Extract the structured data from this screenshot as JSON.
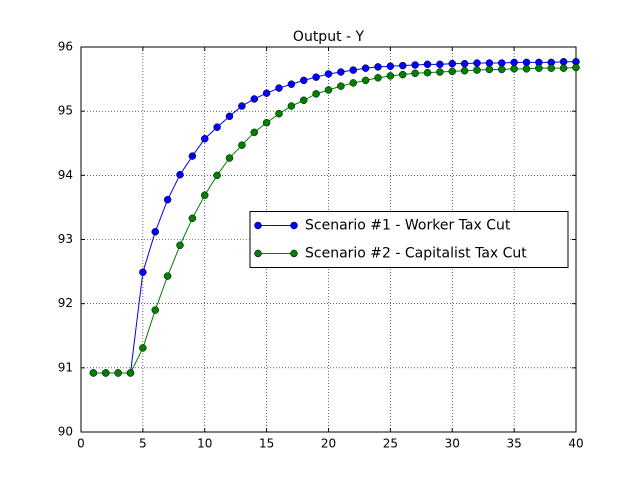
{
  "chart_data": {
    "type": "line",
    "title": "Output - Y",
    "x": [
      1,
      2,
      3,
      4,
      5,
      6,
      7,
      8,
      9,
      10,
      11,
      12,
      13,
      14,
      15,
      16,
      17,
      18,
      19,
      20,
      21,
      22,
      23,
      24,
      25,
      26,
      27,
      28,
      29,
      30,
      31,
      32,
      33,
      34,
      35,
      36,
      37,
      38,
      39,
      40
    ],
    "series": [
      {
        "name": "Scenario #1 - Worker Tax Cut",
        "color": "#0000ff",
        "values": [
          90.92,
          90.92,
          90.92,
          90.92,
          92.49,
          93.12,
          93.62,
          94.01,
          94.3,
          94.57,
          94.75,
          94.92,
          95.08,
          95.19,
          95.28,
          95.36,
          95.42,
          95.48,
          95.53,
          95.58,
          95.61,
          95.64,
          95.67,
          95.69,
          95.7,
          95.71,
          95.72,
          95.73,
          95.73,
          95.74,
          95.74,
          95.75,
          95.75,
          95.75,
          95.76,
          95.76,
          95.76,
          95.76,
          95.77,
          95.77
        ]
      },
      {
        "name": "Scenario #2 - Capitalist Tax Cut",
        "color": "#008000",
        "values": [
          90.92,
          90.92,
          90.92,
          90.92,
          91.31,
          91.9,
          92.43,
          92.91,
          93.33,
          93.69,
          94.0,
          94.27,
          94.47,
          94.67,
          94.82,
          94.96,
          95.08,
          95.17,
          95.27,
          95.33,
          95.39,
          95.44,
          95.48,
          95.52,
          95.55,
          95.57,
          95.59,
          95.6,
          95.61,
          95.62,
          95.63,
          95.64,
          95.65,
          95.65,
          95.66,
          95.66,
          95.67,
          95.67,
          95.67,
          95.68
        ]
      }
    ],
    "xlim": [
      0,
      40
    ],
    "xticks": [
      0,
      5,
      10,
      15,
      20,
      25,
      30,
      35,
      40
    ],
    "ylim": [
      90,
      96
    ],
    "yticks": [
      90,
      91,
      92,
      93,
      94,
      95,
      96
    ],
    "grid": true,
    "legend": "center right"
  }
}
